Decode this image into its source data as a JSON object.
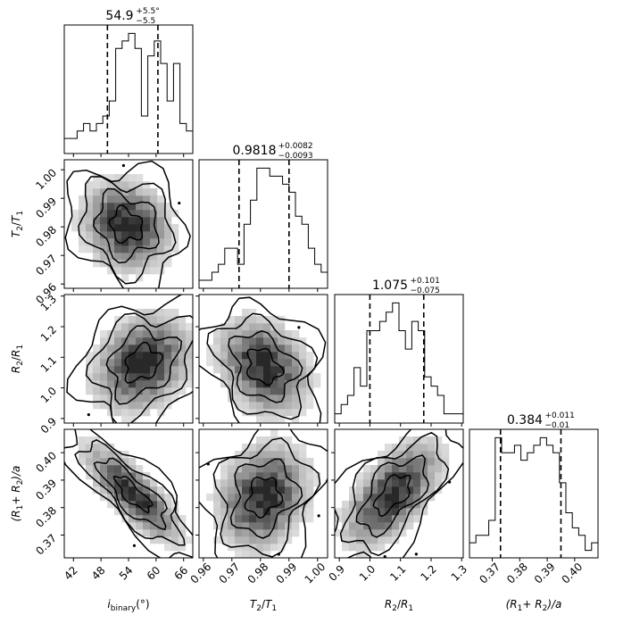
{
  "chart_data": {
    "type": "corner",
    "parameters": [
      {
        "key": "i",
        "symbol": "i",
        "sub": "binary",
        "suffix": "(°)",
        "range": [
          40,
          68
        ],
        "ticks": [
          42,
          48,
          54,
          60,
          66
        ],
        "tick_labels": [
          "42",
          "48",
          "54",
          "60",
          "66"
        ],
        "median": "54.9",
        "plus": "+5.5",
        "minus": "−5.5",
        "title_suffix": "°",
        "quantiles": [
          49.4,
          54.9,
          60.4
        ]
      },
      {
        "key": "t",
        "symbol": "T",
        "sub": "2",
        "over": "T",
        "over_sub": "1",
        "range": [
          0.9585,
          1.0035
        ],
        "ticks": [
          0.96,
          0.97,
          0.98,
          0.99,
          1.0
        ],
        "tick_labels": [
          "0.96",
          "0.97",
          "0.98",
          "0.99",
          "1.00"
        ],
        "median": "0.9818",
        "plus": "+0.0082",
        "minus": "−0.0093",
        "quantiles": [
          0.9725,
          0.9818,
          0.99
        ]
      },
      {
        "key": "r",
        "symbol": "R",
        "sub": "2",
        "over": "R",
        "over_sub": "1",
        "range": [
          0.885,
          1.305
        ],
        "ticks": [
          0.9,
          1.0,
          1.1,
          1.2,
          1.3
        ],
        "tick_labels": [
          "0.9",
          "1.0",
          "1.1",
          "1.2",
          "1.3"
        ],
        "median": "1.075",
        "plus": "+0.101",
        "minus": "−0.075",
        "quantiles": [
          1.0,
          1.075,
          1.176
        ]
      },
      {
        "key": "a",
        "symbol": "(R",
        "sub": "1",
        "plus_sym": "+ R",
        "sub2": "2",
        "tail": ")/a",
        "range": [
          0.3617,
          0.4085
        ],
        "ticks": [
          0.37,
          0.38,
          0.39,
          0.4
        ],
        "tick_labels": [
          "0.37",
          "0.38",
          "0.39",
          "0.40"
        ],
        "median": "0.384",
        "plus": "+0.011",
        "minus": "−0.01",
        "quantiles": [
          0.373,
          0.384,
          0.395
        ]
      }
    ],
    "y_axis_rows": [
      {
        "param": 1,
        "ticks": [
          0.96,
          0.97,
          0.98,
          0.99,
          1.0
        ],
        "tick_labels": [
          "0.96",
          "0.97",
          "0.98",
          "0.99",
          "1.00"
        ]
      },
      {
        "param": 2,
        "ticks": [
          0.9,
          1.0,
          1.1,
          1.2,
          1.3
        ],
        "tick_labels": [
          "0.9",
          "1.0",
          "1.1",
          "1.2",
          "1.3"
        ]
      },
      {
        "param": 3,
        "ticks": [
          0.37,
          0.38,
          0.39,
          0.4
        ],
        "tick_labels": [
          "0.37",
          "0.38",
          "0.39",
          "0.40"
        ]
      }
    ],
    "histograms": [
      {
        "param": 0,
        "edges_from": 40,
        "bin": 1.4,
        "counts": [
          2,
          2,
          3,
          4,
          3,
          4,
          5,
          7,
          14,
          15,
          16,
          14,
          5,
          13,
          15,
          12,
          7,
          12,
          4,
          3,
          1,
          1,
          1,
          0
        ]
      },
      {
        "param": 1,
        "edges_from": 0.9585,
        "bin": 0.00225,
        "counts": [
          1,
          1,
          2,
          3,
          5,
          5,
          3,
          8,
          11,
          15,
          15,
          14,
          14,
          13,
          12,
          9,
          8,
          5,
          3,
          2,
          1,
          0
        ]
      },
      {
        "param": 2,
        "edges_from": 0.885,
        "bin": 0.021,
        "counts": [
          1,
          2,
          3,
          6,
          4,
          10,
          10,
          11,
          12,
          13,
          10,
          8,
          11,
          10,
          5,
          4,
          3,
          1,
          1,
          1
        ]
      },
      {
        "param": 3,
        "edges_from": 0.3617,
        "bin": 0.00234,
        "counts": [
          2,
          3,
          3,
          5,
          16,
          14,
          14,
          15,
          13,
          14,
          15,
          16,
          15,
          14,
          10,
          6,
          4,
          3,
          1,
          2
        ]
      }
    ],
    "pairs": [
      {
        "x": 0,
        "y": 1,
        "center": [
          53.5,
          0.9805
        ],
        "spread": [
          5.5,
          0.009
        ],
        "rho": -0.15
      },
      {
        "x": 0,
        "y": 2,
        "center": [
          57.0,
          1.08
        ],
        "spread": [
          6.0,
          0.09
        ],
        "rho": 0.25
      },
      {
        "x": 0,
        "y": 3,
        "center": [
          55.0,
          0.385
        ],
        "spread": [
          6.0,
          0.01
        ],
        "rho": -0.8
      },
      {
        "x": 1,
        "y": 2,
        "center": [
          0.981,
          1.07
        ],
        "spread": [
          0.009,
          0.09
        ],
        "rho": -0.25
      },
      {
        "x": 1,
        "y": 3,
        "center": [
          0.981,
          0.384
        ],
        "spread": [
          0.009,
          0.011
        ],
        "rho": 0.2
      },
      {
        "x": 2,
        "y": 3,
        "center": [
          1.075,
          0.385
        ],
        "spread": [
          0.09,
          0.011
        ],
        "rho": 0.6
      }
    ],
    "grid": false
  }
}
